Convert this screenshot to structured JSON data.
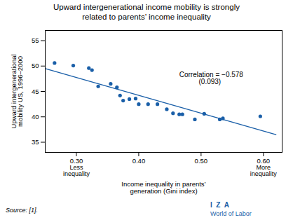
{
  "chart_data": {
    "type": "scatter",
    "title": "Upward intergenerational income mobility is strongly\nrelated to parents’ income inequality",
    "xlabel": "Income inequality in parents’\ngeneration (Gini index)",
    "ylabel": "Upward intergenerational\nmobility US, 1996–2000",
    "series": [
      {
        "type": "scatter",
        "color": "#1a5fa8",
        "x": [
          0.265,
          0.295,
          0.32,
          0.325,
          0.335,
          0.355,
          0.365,
          0.37,
          0.375,
          0.385,
          0.395,
          0.4,
          0.415,
          0.43,
          0.445,
          0.455,
          0.465,
          0.47,
          0.49,
          0.505,
          0.53,
          0.535,
          0.595
        ],
        "values": [
          50.6,
          50.1,
          49.6,
          49.2,
          46.0,
          46.5,
          45.8,
          44.2,
          43.2,
          43.5,
          43.6,
          42.5,
          42.5,
          42.5,
          41.5,
          40.7,
          40.5,
          40.5,
          39.5,
          40.6,
          39.5,
          39.7,
          40.1
        ]
      },
      {
        "type": "line",
        "color": "#1a5fa8",
        "x": [
          0.25,
          0.62
        ],
        "values": [
          49.5,
          36.5
        ]
      }
    ],
    "xlim": [
      0.25,
      0.63
    ],
    "ylim": [
      33,
      57
    ],
    "xticks": [
      0.3,
      0.4,
      0.5,
      0.6
    ],
    "yticks": [
      35,
      40,
      45,
      50,
      55
    ],
    "annotations": [
      {
        "text": "Correlation = −0.578\n          (0.093)",
        "x": 0.465,
        "y": 48.8
      },
      {
        "text": "Less\ninequality",
        "x": 0.3
      },
      {
        "text": "More\ninequality",
        "x": 0.6
      },
      {
        "text": "Source: [1]."
      },
      {
        "text": "I  Z  A",
        "color": "#1a5fa8"
      },
      {
        "text": "World of Labor",
        "color": "#1a5fa8"
      }
    ]
  }
}
